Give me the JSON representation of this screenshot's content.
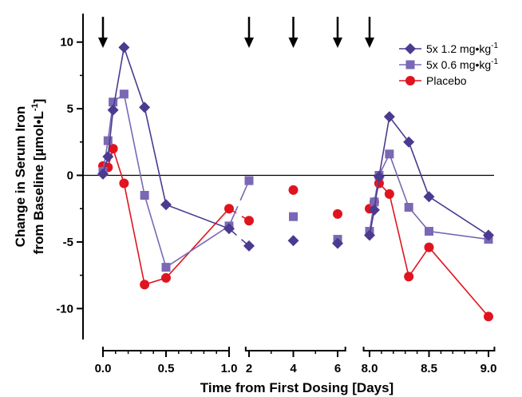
{
  "chart_data": {
    "type": "line",
    "xlabel": "Time from First Dosing [Days]",
    "ylabel": {
      "line1": "Change in Serum Iron",
      "line2_prefix": "from Baseline [µmol•L",
      "line2_sup": "-1",
      "line2_suffix": "]"
    },
    "ylim": [
      -12,
      12
    ],
    "y_ticks": [
      "10",
      "5",
      "0",
      "-5",
      "-10"
    ],
    "x_segments": [
      {
        "range": [
          0,
          1.0
        ],
        "ticks": [
          "0.0",
          "0.5",
          "1.0"
        ],
        "tick_values": [
          0,
          0.5,
          1.0
        ]
      },
      {
        "range": [
          1.85,
          6.35
        ],
        "ticks": [
          "2",
          "4",
          "6"
        ],
        "tick_values": [
          2,
          4,
          6
        ]
      },
      {
        "range": [
          7.95,
          9.05
        ],
        "ticks": [
          "8.0",
          "8.5",
          "9.0"
        ],
        "tick_values": [
          8.0,
          8.5,
          9.0
        ]
      }
    ],
    "dosing_arrows_x": [
      0,
      2,
      4,
      6,
      8
    ],
    "reference_line_y": 0,
    "legend_placement": "top-right",
    "series": [
      {
        "name": "5x 1.2 mg•kg",
        "name_sup": "-1",
        "color": "#4b3a8f",
        "marker": "diamond",
        "points": [
          [
            0.0,
            0.1
          ],
          [
            0.04,
            1.4
          ],
          [
            0.08,
            4.9
          ],
          [
            0.167,
            9.6
          ],
          [
            0.33,
            5.1
          ],
          [
            0.5,
            -2.2
          ],
          [
            1.0,
            -4.0
          ],
          [
            2.0,
            -5.3
          ],
          [
            4.0,
            -4.9
          ],
          [
            6.0,
            -5.1
          ],
          [
            8.0,
            -4.5
          ],
          [
            8.04,
            -2.6
          ],
          [
            8.08,
            -0.1
          ],
          [
            8.167,
            4.4
          ],
          [
            8.33,
            2.5
          ],
          [
            8.5,
            -1.6
          ],
          [
            9.0,
            -4.5
          ]
        ]
      },
      {
        "name": "5x 0.6 mg•kg",
        "name_sup": "-1",
        "color": "#7a68b5",
        "marker": "square",
        "points": [
          [
            0.0,
            0.3
          ],
          [
            0.04,
            2.6
          ],
          [
            0.08,
            5.5
          ],
          [
            0.167,
            6.1
          ],
          [
            0.33,
            -1.5
          ],
          [
            0.5,
            -6.9
          ],
          [
            1.0,
            -3.8
          ],
          [
            2.0,
            -0.4
          ],
          [
            4.0,
            -3.1
          ],
          [
            6.0,
            -4.8
          ],
          [
            8.0,
            -4.2
          ],
          [
            8.04,
            -2.0
          ],
          [
            8.08,
            0.0
          ],
          [
            8.167,
            1.6
          ],
          [
            8.33,
            -2.4
          ],
          [
            8.5,
            -4.2
          ],
          [
            9.0,
            -4.8
          ]
        ]
      },
      {
        "name": "Placebo",
        "name_sup": "",
        "color": "#e0141e",
        "marker": "circle",
        "points": [
          [
            0.0,
            0.7
          ],
          [
            0.04,
            0.6
          ],
          [
            0.08,
            2.0
          ],
          [
            0.167,
            -0.6
          ],
          [
            0.33,
            -8.2
          ],
          [
            0.5,
            -7.7
          ],
          [
            1.0,
            -2.5
          ],
          [
            2.0,
            -3.4
          ],
          [
            4.0,
            -1.1
          ],
          [
            6.0,
            -2.9
          ],
          [
            8.0,
            -2.5
          ],
          [
            8.04,
            -2.0
          ],
          [
            8.08,
            -0.6
          ],
          [
            8.167,
            -1.4
          ],
          [
            8.33,
            -7.6
          ],
          [
            8.5,
            -5.4
          ],
          [
            9.0,
            -10.6
          ]
        ]
      }
    ]
  }
}
